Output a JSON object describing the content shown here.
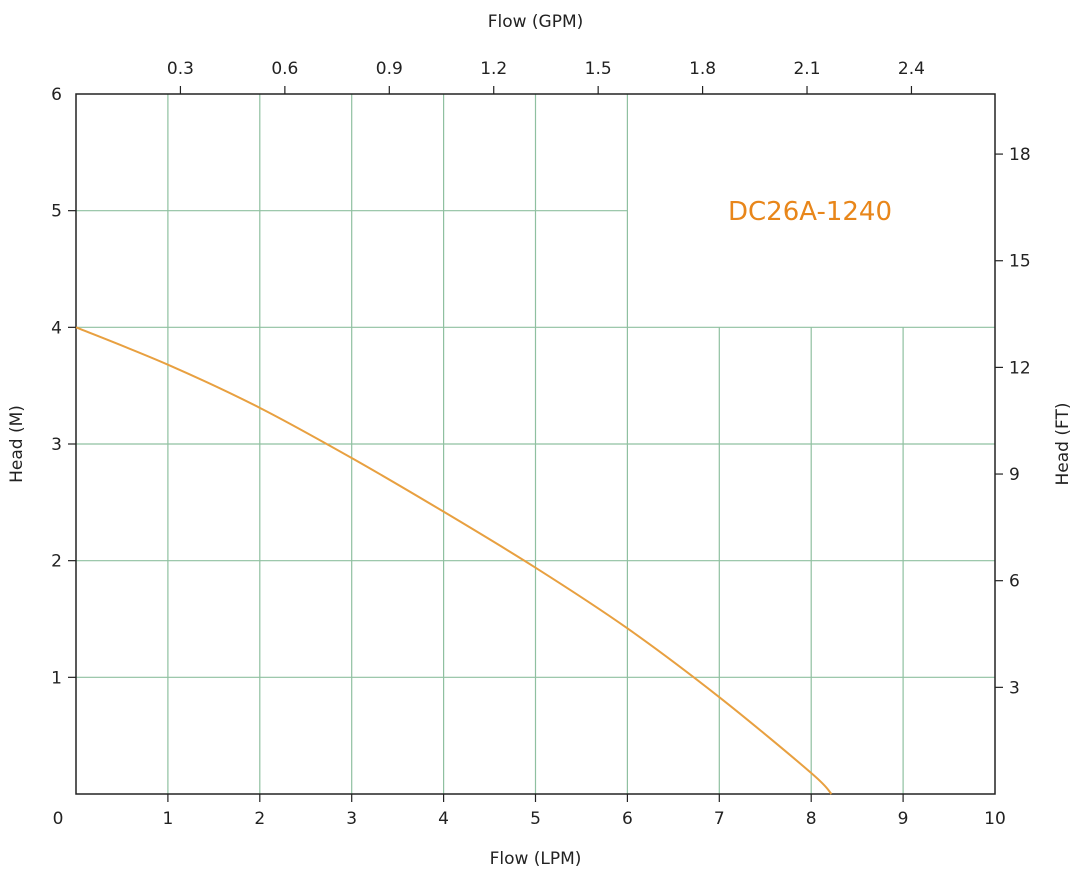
{
  "chart_data": {
    "type": "line",
    "model_label": "DC26A-1240",
    "xlabel": "Flow (LPM)",
    "ylabel": "Head (M)",
    "x2label": "Flow (GPM)",
    "y2label": "Head (FT)",
    "xlim": [
      0,
      10
    ],
    "ylim": [
      0,
      6
    ],
    "x2lim": [
      0,
      2.64
    ],
    "y2lim": [
      0,
      19.69
    ],
    "x_ticks": [
      "0",
      "1",
      "2",
      "3",
      "4",
      "5",
      "6",
      "7",
      "8",
      "9",
      "10"
    ],
    "y_ticks": [
      "1",
      "2",
      "3",
      "4",
      "5",
      "6"
    ],
    "x2_ticks": [
      "0.3",
      "0.6",
      "0.9",
      "1.2",
      "1.5",
      "1.8",
      "2.1",
      "2.4"
    ],
    "y2_ticks": [
      "3",
      "6",
      "9",
      "12",
      "15",
      "18"
    ],
    "grid": true,
    "colors": {
      "curve": "#e8a040",
      "label": "#e8861a",
      "grid": "#8fc0a0",
      "axis": "#222222"
    },
    "series": [
      {
        "x": [
          0,
          1,
          2,
          3,
          4,
          5,
          6,
          7,
          8,
          8.22
        ],
        "y": [
          4.0,
          3.68,
          3.31,
          2.88,
          2.42,
          1.94,
          1.42,
          0.83,
          0.18,
          0.0
        ]
      }
    ]
  }
}
